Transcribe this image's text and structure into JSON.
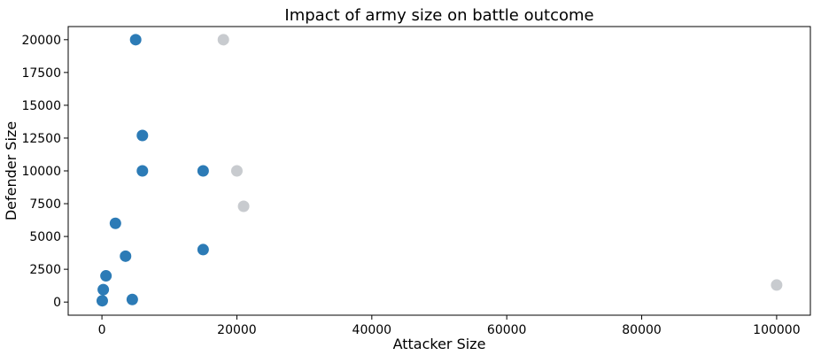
{
  "chart_data": {
    "type": "scatter",
    "title": "Impact of army size on battle outcome",
    "xlabel": "Attacker Size",
    "ylabel": "Defender Size",
    "xlim": [
      -5000,
      105000
    ],
    "ylim": [
      -1000,
      21000
    ],
    "xticks": [
      0,
      20000,
      40000,
      60000,
      80000,
      100000
    ],
    "yticks": [
      0,
      2500,
      5000,
      7500,
      10000,
      12500,
      15000,
      17500,
      20000
    ],
    "grid": false,
    "series": [
      {
        "color": "#2c7bb6",
        "points": [
          {
            "x": 5000,
            "y": 20000
          },
          {
            "x": 6000,
            "y": 12700
          },
          {
            "x": 6000,
            "y": 10000
          },
          {
            "x": 15000,
            "y": 10000
          },
          {
            "x": 2000,
            "y": 6000
          },
          {
            "x": 15000,
            "y": 4000
          },
          {
            "x": 3500,
            "y": 3500
          },
          {
            "x": 600,
            "y": 2000
          },
          {
            "x": 200,
            "y": 950
          },
          {
            "x": 50,
            "y": 100
          },
          {
            "x": 4500,
            "y": 200
          }
        ]
      },
      {
        "color": "#c8cbcf",
        "points": [
          {
            "x": 18000,
            "y": 20000
          },
          {
            "x": 20000,
            "y": 10000
          },
          {
            "x": 21000,
            "y": 7300
          },
          {
            "x": 100000,
            "y": 1300
          }
        ]
      }
    ]
  }
}
